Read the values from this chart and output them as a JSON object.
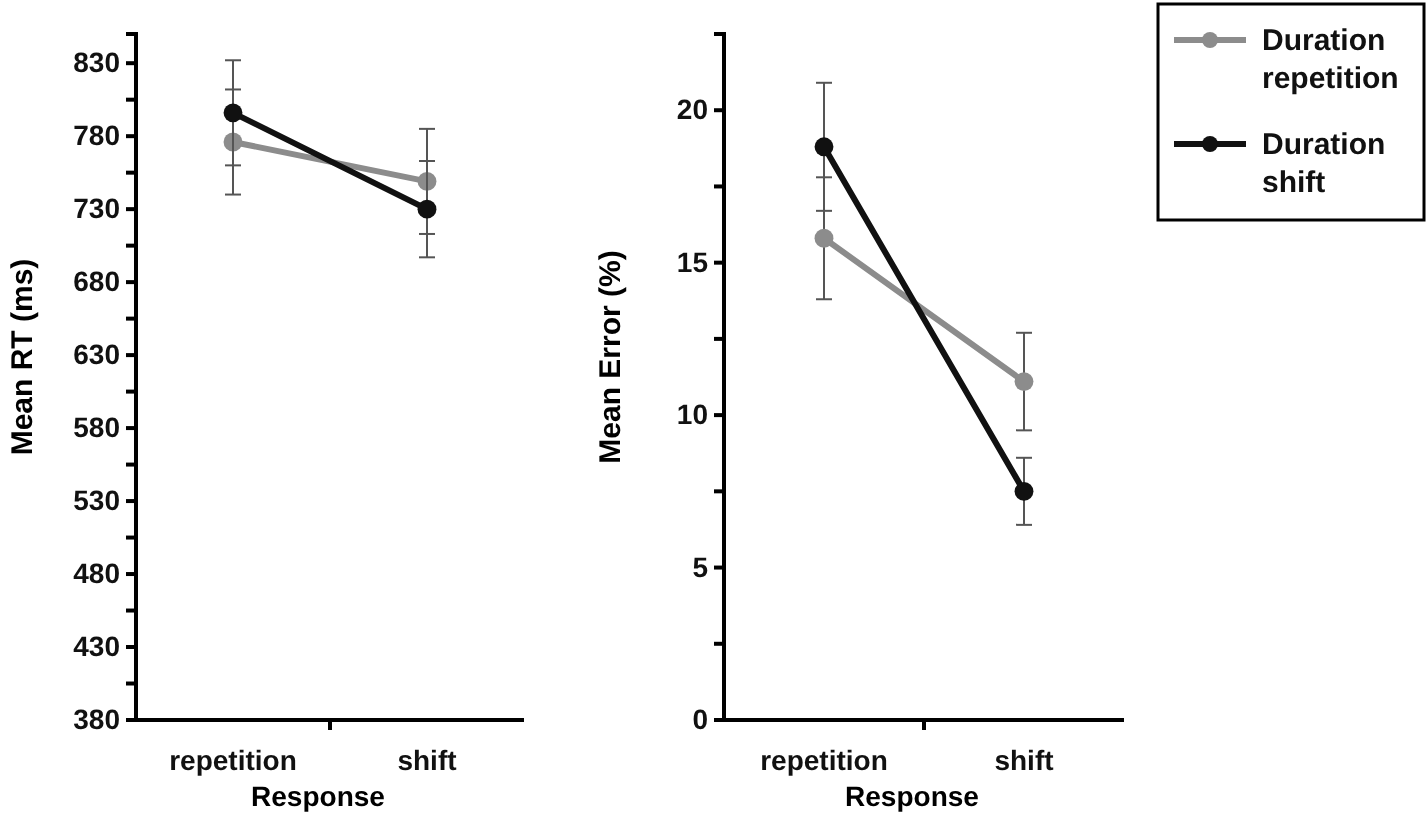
{
  "chart_data": [
    {
      "type": "line",
      "xlabel": "Response",
      "ylabel": "Mean RT (ms)",
      "categories": [
        "repetition",
        "shift"
      ],
      "ylim": [
        380,
        850
      ],
      "yticks": [
        380,
        {
          "value": 405,
          "label": null
        },
        430,
        {
          "value": 455,
          "label": null
        },
        480,
        {
          "value": 505,
          "label": null
        },
        530,
        {
          "value": 555,
          "label": null
        },
        580,
        {
          "value": 605,
          "label": null
        },
        630,
        {
          "value": 655,
          "label": null
        },
        680,
        {
          "value": 705,
          "label": null
        },
        730,
        {
          "value": 755,
          "label": null
        },
        780,
        {
          "value": 805,
          "label": null
        },
        830
      ],
      "grid": false,
      "legend": false,
      "marker": "circle",
      "line_style": "solid",
      "series": [
        {
          "color": "#8c8c8c",
          "values": [
            776,
            749
          ],
          "errors": [
            36,
            36
          ]
        },
        {
          "color": "#111111",
          "values": [
            796,
            730
          ],
          "errors": [
            36,
            33
          ]
        }
      ]
    },
    {
      "type": "line",
      "xlabel": "Response",
      "ylabel": "Mean Error (%)",
      "categories": [
        "repetition",
        "shift"
      ],
      "ylim": [
        0,
        22.5
      ],
      "yticks": [
        0,
        {
          "value": 2.5,
          "label": null
        },
        5,
        {
          "value": 7.5,
          "label": null
        },
        10,
        {
          "value": 12.5,
          "label": null
        },
        15,
        {
          "value": 17.5,
          "label": null
        },
        20
      ],
      "grid": false,
      "legend": "right",
      "marker": "circle",
      "line_style": "solid",
      "series": [
        {
          "name": "Duration repetition",
          "color": "#8c8c8c",
          "values": [
            15.8,
            11.1
          ],
          "errors": [
            2,
            1.6
          ]
        },
        {
          "name": "Duration shift",
          "color": "#111111",
          "values": [
            18.8,
            7.5
          ],
          "errors": [
            2.1,
            1.1
          ]
        }
      ]
    }
  ]
}
